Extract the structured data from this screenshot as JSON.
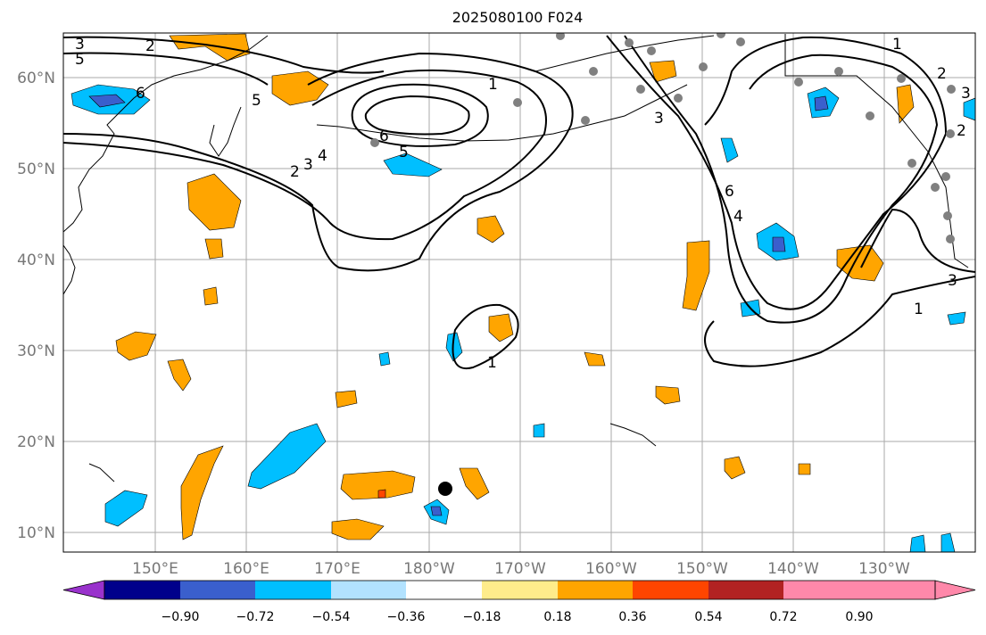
{
  "title": "2025080100 F024",
  "axes": {
    "lon_labels": [
      "150°E",
      "160°E",
      "170°E",
      "180°W",
      "170°W",
      "160°W",
      "150°W",
      "140°W",
      "130°W"
    ],
    "lat_labels": [
      "60°N",
      "50°N",
      "40°N",
      "30°N",
      "20°N",
      "10°N"
    ]
  },
  "colorbar": {
    "levels": [
      "−0.90",
      "−0.72",
      "−0.54",
      "−0.36",
      "−0.18",
      "0.18",
      "0.36",
      "0.54",
      "0.72",
      "0.90"
    ],
    "colors": [
      "#9932cc",
      "#00008b",
      "#3a5fcd",
      "#00bfff",
      "#b2e2ff",
      "#ffffff",
      "#ffec8b",
      "#ffa500",
      "#ff4500",
      "#b22222",
      "#ff88aa"
    ]
  },
  "contour_labels": [
    "3",
    "2",
    "5",
    "6",
    "5",
    "1",
    "6",
    "5",
    "4",
    "3",
    "2",
    "1",
    "6",
    "4",
    "3",
    "2",
    "1",
    "1",
    "3",
    "2",
    "3"
  ],
  "marker": {
    "label": "storm center",
    "lon": -178,
    "lat": 15
  }
}
